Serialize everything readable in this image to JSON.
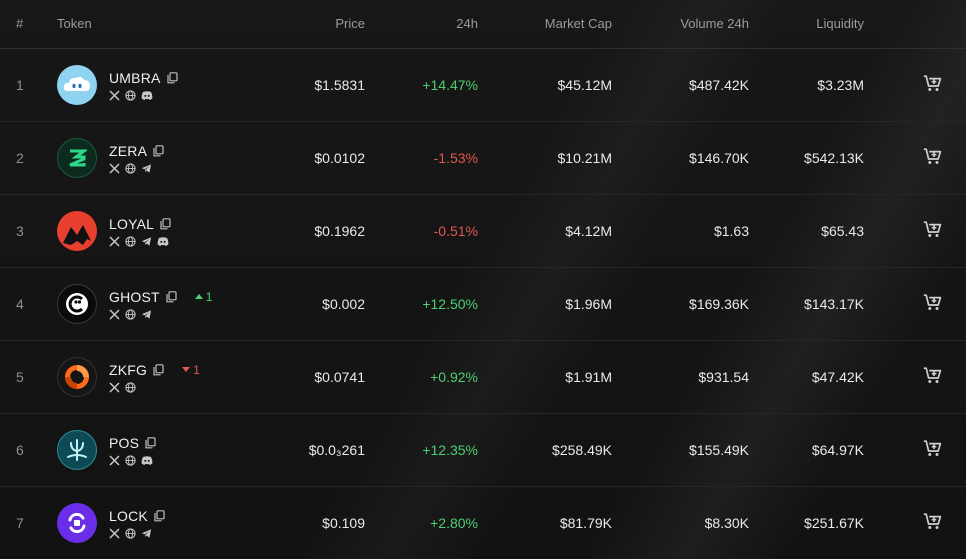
{
  "headers": {
    "rank": "#",
    "token": "Token",
    "price": "Price",
    "change": "24h",
    "market_cap": "Market Cap",
    "volume": "Volume 24h",
    "liquidity": "Liquidity"
  },
  "colors": {
    "positive": "#4ccf72",
    "negative": "#e0584f"
  },
  "rows": [
    {
      "rank": "1",
      "name": "UMBRA",
      "price": "$1.5831",
      "change": "+14.47%",
      "trend": "up",
      "market_cap": "$45.12M",
      "volume": "$487.42K",
      "liquidity": "$3.23M",
      "socials": [
        "x-icon",
        "globe-icon",
        "discord-icon"
      ],
      "rank_change": "",
      "logo": "cloud-logo"
    },
    {
      "rank": "2",
      "name": "ZERA",
      "price": "$0.0102",
      "change": "-1.53%",
      "trend": "down",
      "market_cap": "$10.21M",
      "volume": "$146.70K",
      "liquidity": "$542.13K",
      "socials": [
        "x-icon",
        "globe-icon",
        "telegram-icon"
      ],
      "rank_change": "",
      "logo": "zera-logo"
    },
    {
      "rank": "3",
      "name": "LOYAL",
      "price": "$0.1962",
      "change": "-0.51%",
      "trend": "down",
      "market_cap": "$4.12M",
      "volume": "$1.63",
      "liquidity": "$65.43",
      "socials": [
        "x-icon",
        "globe-icon",
        "telegram-icon",
        "discord-icon"
      ],
      "rank_change": "",
      "logo": "loyal-logo"
    },
    {
      "rank": "4",
      "name": "GHOST",
      "price": "$0.002",
      "change": "+12.50%",
      "trend": "up",
      "market_cap": "$1.96M",
      "volume": "$169.36K",
      "liquidity": "$143.17K",
      "socials": [
        "x-icon",
        "globe-icon",
        "telegram-icon"
      ],
      "rank_change": "1",
      "rank_dir": "up",
      "logo": "ghost-logo"
    },
    {
      "rank": "5",
      "name": "ZKFG",
      "price": "$0.0741",
      "change": "+0.92%",
      "trend": "up",
      "market_cap": "$1.91M",
      "volume": "$931.54",
      "liquidity": "$47.42K",
      "socials": [
        "x-icon",
        "globe-icon"
      ],
      "rank_change": "1",
      "rank_dir": "down",
      "logo": "zkfg-logo"
    },
    {
      "rank": "6",
      "name": "POS",
      "price": "$0.0₃261",
      "change": "+12.35%",
      "trend": "up",
      "market_cap": "$258.49K",
      "volume": "$155.49K",
      "liquidity": "$64.97K",
      "socials": [
        "x-icon",
        "globe-icon",
        "discord-icon"
      ],
      "rank_change": "",
      "logo": "trident-logo"
    },
    {
      "rank": "7",
      "name": "LOCK",
      "price": "$0.109",
      "change": "+2.80%",
      "trend": "up",
      "market_cap": "$81.79K",
      "volume": "$8.30K",
      "liquidity": "$251.67K",
      "socials": [
        "x-icon",
        "globe-icon",
        "telegram-icon"
      ],
      "rank_change": "",
      "logo": "lock-logo"
    }
  ]
}
